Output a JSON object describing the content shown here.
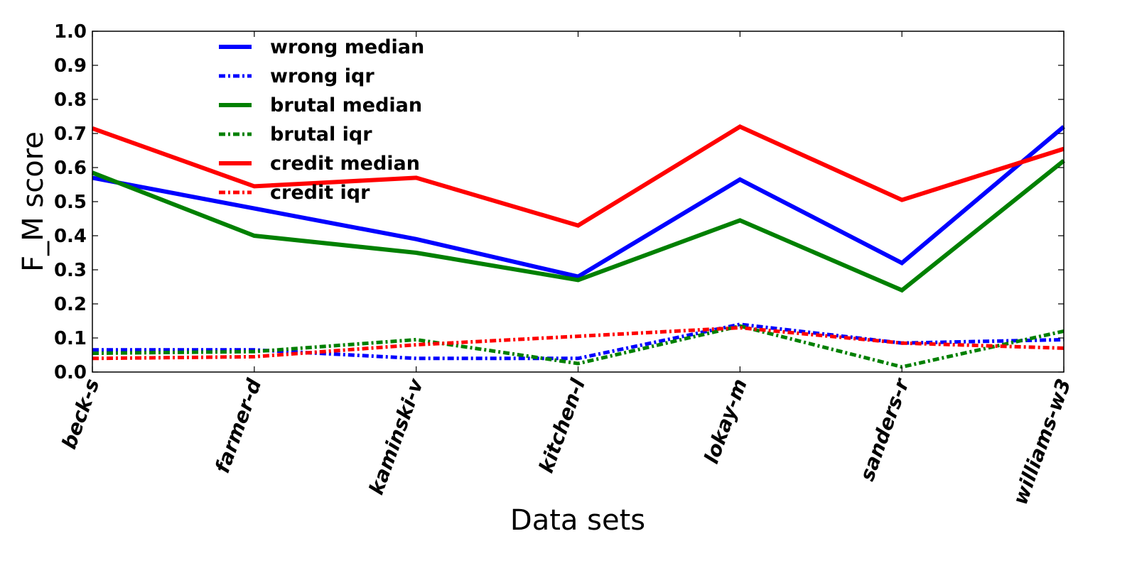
{
  "chart_data": {
    "type": "line",
    "xlabel": "Data sets",
    "ylabel": "F_M score",
    "ylim": [
      0,
      1.0
    ],
    "yticks": [
      "0.0",
      "0.1",
      "0.2",
      "0.3",
      "0.4",
      "0.5",
      "0.6",
      "0.7",
      "0.8",
      "0.9",
      "1.0"
    ],
    "categories": [
      "beck-s",
      "farmer-d",
      "kaminski-v",
      "kitchen-l",
      "lokay-m",
      "sanders-r",
      "williams-w3"
    ],
    "grid": false,
    "legend_position": "top-left",
    "series": [
      {
        "name": "wrong median",
        "color": "#0000ff",
        "style": "solid",
        "values": [
          0.57,
          0.48,
          0.39,
          0.28,
          0.565,
          0.32,
          0.72
        ]
      },
      {
        "name": "wrong iqr",
        "color": "#0000ff",
        "style": "dashdot",
        "values": [
          0.065,
          0.065,
          0.04,
          0.04,
          0.14,
          0.085,
          0.095
        ]
      },
      {
        "name": "brutal median",
        "color": "#008000",
        "style": "solid",
        "values": [
          0.585,
          0.4,
          0.35,
          0.27,
          0.445,
          0.24,
          0.62
        ]
      },
      {
        "name": "brutal iqr",
        "color": "#008000",
        "style": "dashdot",
        "values": [
          0.055,
          0.06,
          0.095,
          0.025,
          0.135,
          0.015,
          0.12
        ]
      },
      {
        "name": "credit median",
        "color": "#ff0000",
        "style": "solid",
        "values": [
          0.715,
          0.545,
          0.57,
          0.43,
          0.72,
          0.505,
          0.655
        ]
      },
      {
        "name": "credit iqr",
        "color": "#ff0000",
        "style": "dashdot",
        "values": [
          0.04,
          0.045,
          0.08,
          0.105,
          0.13,
          0.085,
          0.07
        ]
      }
    ]
  }
}
